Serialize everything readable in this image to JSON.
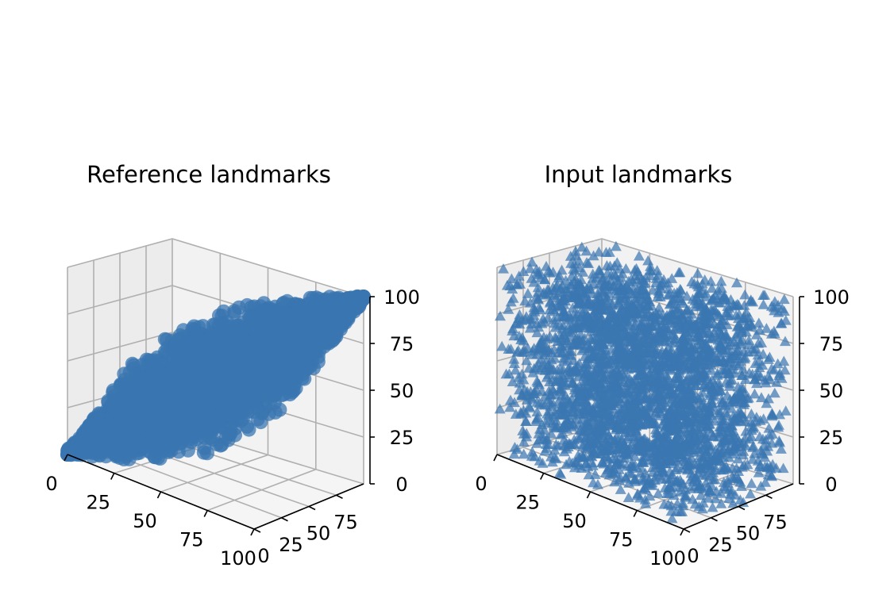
{
  "chart_data": [
    {
      "type": "scatter3d",
      "title": "Reference landmarks",
      "marker": "circle",
      "color": "#3a76b0",
      "xlim": [
        0,
        100
      ],
      "ylim": [
        0,
        100
      ],
      "zlim": [
        0,
        100
      ],
      "x_ticks": [
        "0",
        "25",
        "50",
        "75",
        "100"
      ],
      "y_ticks": [
        "0",
        "25",
        "50",
        "75"
      ],
      "z_ticks": [
        "0",
        "25",
        "50",
        "75",
        "100"
      ],
      "grid": true,
      "series": [
        {
          "points": [
            [
              0,
              0,
              0
            ],
            [
              100,
              100,
              100
            ],
            [
              50,
              50,
              50
            ],
            [
              25,
              25,
              25
            ],
            [
              75,
              75,
              75
            ],
            [
              10,
              5,
              8
            ],
            [
              90,
              95,
              92
            ],
            [
              30,
              20,
              26
            ],
            [
              70,
              80,
              74
            ],
            [
              45,
              55,
              50
            ],
            [
              55,
              45,
              50
            ],
            [
              20,
              35,
              28
            ],
            [
              80,
              65,
              72
            ],
            [
              35,
              30,
              33
            ],
            [
              65,
              70,
              67
            ],
            [
              15,
              25,
              20
            ],
            [
              85,
              75,
              80
            ],
            [
              40,
              60,
              50
            ],
            [
              60,
              40,
              50
            ],
            [
              5,
              15,
              10
            ],
            [
              95,
              85,
              90
            ],
            [
              28,
              45,
              37
            ],
            [
              72,
              55,
              63
            ],
            [
              50,
              30,
              40
            ],
            [
              50,
              70,
              60
            ],
            [
              38,
              40,
              39
            ],
            [
              62,
              60,
              61
            ],
            [
              18,
              10,
              14
            ],
            [
              82,
              90,
              86
            ],
            [
              42,
              25,
              33
            ],
            [
              58,
              75,
              67
            ],
            [
              8,
              22,
              15
            ],
            [
              92,
              78,
              85
            ],
            [
              33,
              52,
              43
            ],
            [
              67,
              48,
              57
            ]
          ]
        }
      ]
    },
    {
      "type": "scatter3d",
      "title": "Input landmarks",
      "marker": "triangle",
      "color": "#3a76b0",
      "xlim": [
        0,
        100
      ],
      "ylim": [
        0,
        100
      ],
      "zlim": [
        0,
        100
      ],
      "x_ticks": [
        "0",
        "25",
        "50",
        "75",
        "100"
      ],
      "y_ticks": [
        "0",
        "25",
        "50",
        "75"
      ],
      "z_ticks": [
        "0",
        "25",
        "50",
        "75",
        "100"
      ],
      "grid": true,
      "series": [
        {
          "points": [
            [
              5,
              5,
              95
            ],
            [
              95,
              95,
              95
            ],
            [
              5,
              95,
              95
            ],
            [
              95,
              5,
              90
            ],
            [
              50,
              50,
              98
            ],
            [
              10,
              10,
              20
            ],
            [
              90,
              90,
              15
            ],
            [
              20,
              80,
              60
            ],
            [
              80,
              20,
              40
            ],
            [
              50,
              50,
              50
            ],
            [
              30,
              30,
              80
            ],
            [
              70,
              70,
              85
            ],
            [
              40,
              60,
              30
            ],
            [
              60,
              40,
              70
            ],
            [
              15,
              50,
              45
            ],
            [
              85,
              50,
              55
            ],
            [
              50,
              15,
              65
            ],
            [
              50,
              85,
              35
            ],
            [
              25,
              70,
              90
            ],
            [
              75,
              30,
              10
            ],
            [
              35,
              15,
              55
            ],
            [
              65,
              85,
              45
            ],
            [
              10,
              90,
              25
            ],
            [
              90,
              10,
              75
            ],
            [
              45,
              25,
              5
            ],
            [
              55,
              75,
              95
            ],
            [
              20,
              40,
              70
            ],
            [
              80,
              60,
              30
            ],
            [
              30,
              90,
              50
            ],
            [
              70,
              10,
              50
            ],
            [
              98,
              50,
              80
            ],
            [
              2,
              50,
              20
            ],
            [
              50,
              98,
              70
            ],
            [
              50,
              2,
              30
            ],
            [
              60,
              60,
              60
            ]
          ]
        }
      ]
    }
  ]
}
